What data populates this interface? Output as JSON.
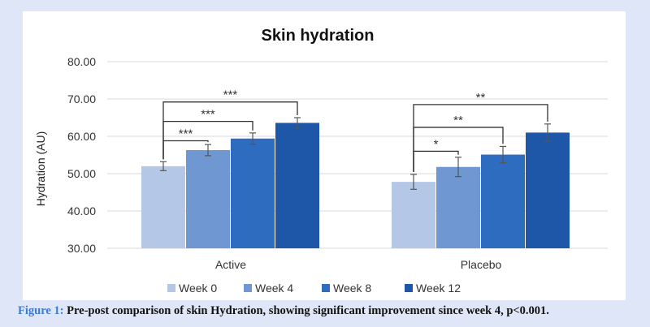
{
  "chart_data": {
    "type": "bar",
    "title": "Skin hydration",
    "ylabel": "Hydration (AU)",
    "xlabel": "",
    "ylim": [
      30,
      80
    ],
    "yticks": [
      "30.00",
      "40.00",
      "50.00",
      "60.00",
      "70.00",
      "80.00"
    ],
    "grid": true,
    "legend_position": "bottom",
    "categories": [
      "Active",
      "Placebo"
    ],
    "series": [
      {
        "name": "Week 0",
        "color": "#b4c7e7",
        "values": [
          52.0,
          47.8
        ],
        "errors": [
          1.2,
          2.0
        ]
      },
      {
        "name": "Week 4",
        "color": "#6f97d1",
        "values": [
          56.3,
          51.8
        ],
        "errors": [
          1.5,
          2.6
        ]
      },
      {
        "name": "Week 8",
        "color": "#2e6cc0",
        "values": [
          59.4,
          55.1
        ],
        "errors": [
          1.5,
          2.2
        ]
      },
      {
        "name": "Week 12",
        "color": "#1f57a8",
        "values": [
          63.6,
          61.0
        ],
        "errors": [
          1.4,
          2.3
        ]
      }
    ],
    "significance": [
      {
        "category": 0,
        "to_series": 1,
        "label": "***",
        "y": 58.8
      },
      {
        "category": 0,
        "to_series": 2,
        "label": "***",
        "y": 64.0
      },
      {
        "category": 0,
        "to_series": 3,
        "label": "***",
        "y": 69.2
      },
      {
        "category": 1,
        "to_series": 1,
        "label": "*",
        "y": 56.0
      },
      {
        "category": 1,
        "to_series": 2,
        "label": "**",
        "y": 62.4
      },
      {
        "category": 1,
        "to_series": 3,
        "label": "**",
        "y": 68.5
      }
    ]
  },
  "caption": {
    "label": "Figure 1:",
    "text": " Pre-post comparison of skin Hydration, showing significant improvement since week 4, p<0.001."
  }
}
